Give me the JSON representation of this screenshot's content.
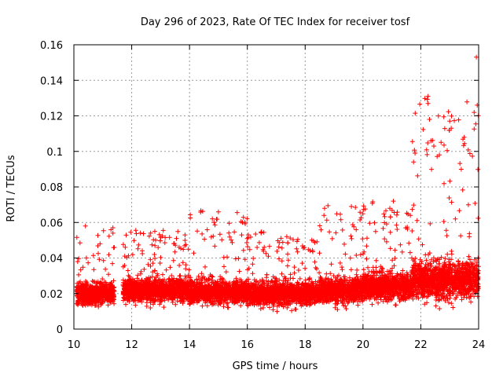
{
  "chart_data": {
    "type": "scatter",
    "title": "Day 296 of 2023, Rate Of TEC Index for receiver tosf",
    "xlabel": "GPS time / hours",
    "ylabel": "ROTI / TECUs",
    "xlim": [
      10,
      24
    ],
    "ylim": [
      0,
      0.16
    ],
    "x_ticks": [
      "10",
      "12",
      "14",
      "16",
      "18",
      "20",
      "22",
      "24"
    ],
    "y_ticks": [
      "0",
      "0.02",
      "0.04",
      "0.06",
      "0.08",
      "0.1",
      "0.12",
      "0.14",
      "0.16"
    ],
    "grid": true,
    "marker": "plus",
    "color": "#ff0000",
    "series": [
      {
        "name": "ROTI",
        "summary": [
          {
            "start": 10.1,
            "end": 11.4,
            "base": 0.02,
            "spread": 0.01,
            "peak": 0.058
          },
          {
            "start": 11.7,
            "end": 14.0,
            "base": 0.022,
            "spread": 0.011,
            "peak": 0.056
          },
          {
            "start": 14.0,
            "end": 16.0,
            "base": 0.021,
            "spread": 0.011,
            "peak": 0.067
          },
          {
            "start": 16.0,
            "end": 18.5,
            "base": 0.02,
            "spread": 0.011,
            "peak": 0.055
          },
          {
            "start": 18.5,
            "end": 20.0,
            "base": 0.022,
            "spread": 0.012,
            "peak": 0.07
          },
          {
            "start": 20.0,
            "end": 21.7,
            "base": 0.024,
            "spread": 0.013,
            "peak": 0.072
          },
          {
            "start": 21.7,
            "end": 24.0,
            "base": 0.028,
            "spread": 0.018,
            "peak": 0.131
          }
        ],
        "outliers": [
          {
            "x": 23.92,
            "y": 0.153
          },
          {
            "x": 23.95,
            "y": 0.126
          },
          {
            "x": 22.25,
            "y": 0.131
          },
          {
            "x": 22.25,
            "y": 0.127
          },
          {
            "x": 22.3,
            "y": 0.118
          },
          {
            "x": 23.0,
            "y": 0.117
          },
          {
            "x": 23.05,
            "y": 0.113
          },
          {
            "x": 23.5,
            "y": 0.108
          },
          {
            "x": 21.8,
            "y": 0.099
          },
          {
            "x": 21.75,
            "y": 0.094
          },
          {
            "x": 22.45,
            "y": 0.103
          },
          {
            "x": 22.35,
            "y": 0.106
          },
          {
            "x": 15.0,
            "y": 0.066
          },
          {
            "x": 19.6,
            "y": 0.069
          },
          {
            "x": 21.05,
            "y": 0.072
          },
          {
            "x": 18.65,
            "y": 0.064
          },
          {
            "x": 10.4,
            "y": 0.058
          },
          {
            "x": 11.35,
            "y": 0.057
          },
          {
            "x": 12.3,
            "y": 0.054
          },
          {
            "x": 12.8,
            "y": 0.055
          }
        ]
      }
    ]
  }
}
